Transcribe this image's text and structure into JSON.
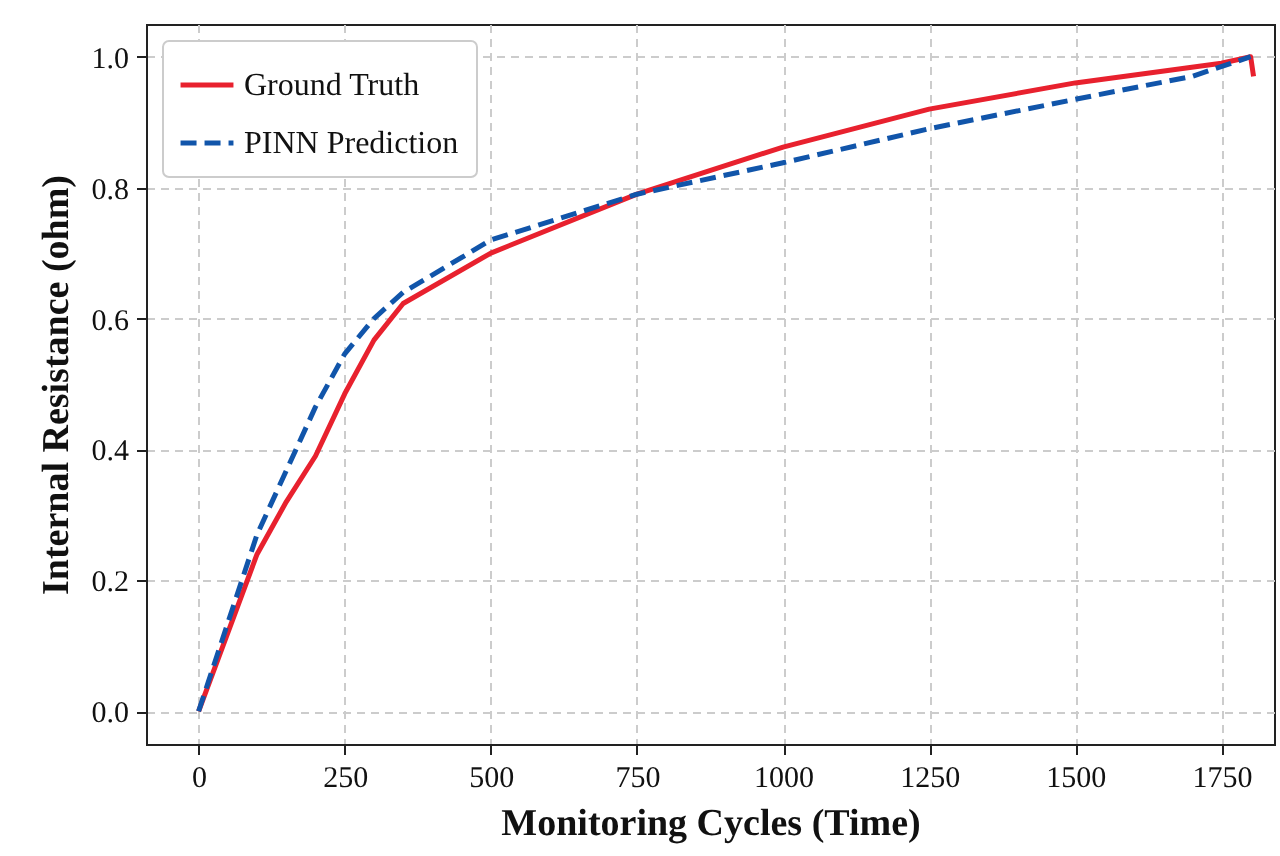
{
  "chart_data": {
    "type": "line",
    "xlabel": "Monitoring Cycles (Time)",
    "ylabel": "Internal Resistance (ohm)",
    "x": [
      0,
      100,
      150,
      200,
      250,
      300,
      350,
      500,
      750,
      1000,
      1250,
      1500,
      1750,
      1800,
      1805
    ],
    "series": [
      {
        "name": "Ground Truth",
        "color": "#e8212e",
        "line_style": "solid",
        "values": [
          0,
          0.24,
          0.32,
          0.39,
          0.485,
          0.567,
          0.623,
          0.7,
          0.79,
          0.862,
          0.92,
          0.96,
          0.99,
          1.0,
          0.97
        ]
      },
      {
        "name": "PINN Prediction",
        "color": "#1155aa",
        "line_style": "dashed",
        "x": [
          0,
          100,
          200,
          250,
          300,
          350,
          500,
          750,
          1000,
          1250,
          1500,
          1700,
          1800
        ],
        "values": [
          0,
          0.27,
          0.465,
          0.546,
          0.6,
          0.64,
          0.72,
          0.79,
          0.838,
          0.89,
          0.935,
          0.97,
          1.0
        ]
      }
    ],
    "xlim": [
      -90,
      1840
    ],
    "ylim": [
      -0.05,
      1.05
    ],
    "xticks": [
      0,
      250,
      500,
      750,
      1000,
      1250,
      1500,
      1750
    ],
    "yticks": [
      {
        "value": 0,
        "label": "0.0"
      },
      {
        "value": 0.2,
        "label": "0.2"
      },
      {
        "value": 0.4,
        "label": "0.4"
      },
      {
        "value": 0.6,
        "label": "0.6"
      },
      {
        "value": 0.8,
        "label": "0.8"
      },
      {
        "value": 1,
        "label": "1.0"
      }
    ],
    "grid": true,
    "legend": "top left",
    "marker": "none"
  }
}
